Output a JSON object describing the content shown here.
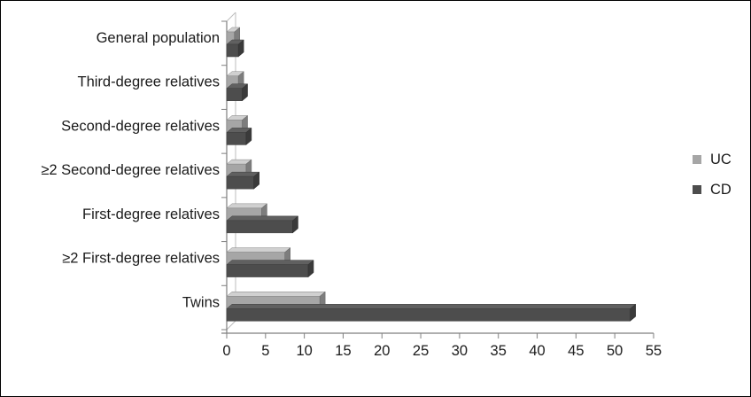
{
  "chart_data": {
    "type": "bar",
    "orientation": "horizontal",
    "three_d": true,
    "categories": [
      "General population",
      "Third-degree relatives",
      "Second-degree relatives",
      "≥2 Second-degree relatives",
      "First-degree relatives",
      "≥2 First-degree relatives",
      "Twins"
    ],
    "series": [
      {
        "name": "UC",
        "color": "#a6a6a6",
        "values": [
          1,
          1.5,
          2,
          2.5,
          4.5,
          7.5,
          12
        ]
      },
      {
        "name": "CD",
        "color": "#4d4d4d",
        "values": [
          1.5,
          2,
          2.5,
          3.5,
          8.5,
          10.5,
          52
        ]
      }
    ],
    "xlim": [
      0,
      55
    ],
    "xticks": [
      0,
      5,
      10,
      15,
      20,
      25,
      30,
      35,
      40,
      45,
      50,
      55
    ],
    "grid": false,
    "legend_position": "right"
  }
}
